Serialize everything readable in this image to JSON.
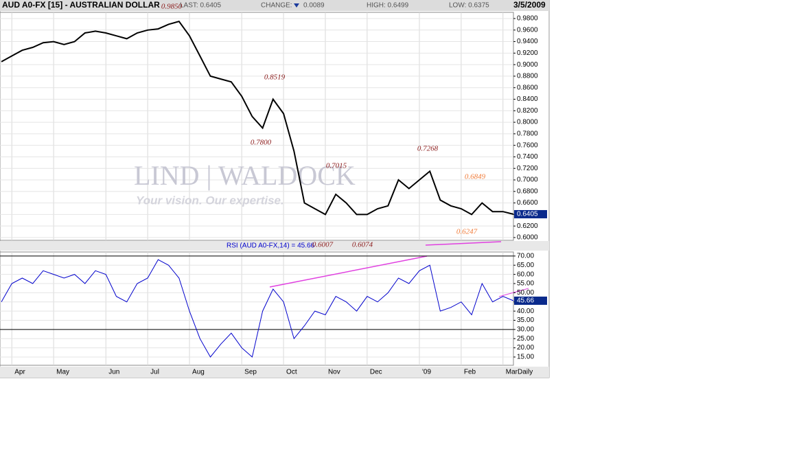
{
  "header": {
    "title": "AUD A0-FX [15] - AUSTRALIAN DOLLAR",
    "last": "LAST: 0.6405",
    "change_label": "CHANGE:",
    "change": "0.0089",
    "high": "HIGH: 0.6499",
    "low": "LOW: 0.6375",
    "date": "3/5/2009",
    "frequency": "Daily",
    "watermark": "LIND | WALDOCK",
    "tagline": "Your vision. Our expertise."
  },
  "chart_data": [
    {
      "type": "line",
      "color": "#000000",
      "categories": [
        null,
        "Apr",
        null,
        null,
        null,
        "May",
        null,
        null,
        null,
        null,
        "Jun",
        null,
        null,
        null,
        "Jul",
        null,
        null,
        null,
        "Aug",
        null,
        null,
        null,
        null,
        "Sep",
        null,
        null,
        null,
        "Oct",
        null,
        null,
        null,
        "Nov",
        null,
        null,
        null,
        "Dec",
        null,
        null,
        null,
        null,
        "'09",
        null,
        null,
        null,
        "Feb",
        null,
        null,
        null,
        "Mar",
        null
      ],
      "values": [
        0.905,
        0.915,
        0.925,
        0.93,
        0.938,
        0.94,
        0.935,
        0.94,
        0.955,
        0.958,
        0.955,
        0.95,
        0.945,
        0.955,
        0.96,
        0.962,
        0.97,
        0.975,
        0.95,
        0.915,
        0.88,
        0.875,
        0.87,
        0.845,
        0.81,
        0.79,
        0.84,
        0.815,
        0.75,
        0.66,
        0.65,
        0.64,
        0.675,
        0.66,
        0.64,
        0.64,
        0.65,
        0.655,
        0.7,
        0.685,
        0.7,
        0.715,
        0.665,
        0.655,
        0.65,
        0.64,
        0.66,
        0.645,
        0.645,
        0.6405
      ],
      "last_label": "0.6405",
      "ylim": [
        0.5952,
        0.9907
      ],
      "yticks": [
        {
          "value": 0.6,
          "label": "0.6000"
        },
        {
          "value": 0.62,
          "label": "0.6200"
        },
        {
          "value": 0.64,
          "label": "0.6400"
        },
        {
          "value": 0.66,
          "label": "0.6600"
        },
        {
          "value": 0.68,
          "label": "0.6800"
        },
        {
          "value": 0.7,
          "label": "0.7000"
        },
        {
          "value": 0.72,
          "label": "0.7200"
        },
        {
          "value": 0.74,
          "label": "0.7400"
        },
        {
          "value": 0.76,
          "label": "0.7600"
        },
        {
          "value": 0.78,
          "label": "0.7800"
        },
        {
          "value": 0.8,
          "label": "0.8000"
        },
        {
          "value": 0.82,
          "label": "0.8200"
        },
        {
          "value": 0.84,
          "label": "0.8400"
        },
        {
          "value": 0.86,
          "label": "0.8600"
        },
        {
          "value": 0.88,
          "label": "0.8800"
        },
        {
          "value": 0.9,
          "label": "0.9000"
        },
        {
          "value": 0.92,
          "label": "0.9200"
        },
        {
          "value": 0.94,
          "label": "0.9400"
        },
        {
          "value": 0.96,
          "label": "0.9600"
        },
        {
          "value": 0.98,
          "label": "0.9800"
        }
      ],
      "grid": true,
      "annotations": [
        {
          "text": "0.9850",
          "color": "#8b1a1a"
        },
        {
          "text": "0.8519",
          "color": "#8b1a1a"
        },
        {
          "text": "0.7800",
          "color": "#8b1a1a"
        },
        {
          "text": "0.7015",
          "color": "#8b1a1a"
        },
        {
          "text": "0.7268",
          "color": "#8b1a1a"
        },
        {
          "text": "0.6849",
          "color": "#f07c3a"
        },
        {
          "text": "0.6247",
          "color": "#f07c3a"
        },
        {
          "text": "0.6007",
          "color": "#8b1a1a"
        },
        {
          "text": "0.6074",
          "color": "#8b1a1a"
        }
      ]
    },
    {
      "type": "line",
      "title": "RSI (AUD A0-FX,14) = 45.66",
      "color": "#0000cc",
      "values": [
        45,
        55,
        58,
        55,
        62,
        60,
        58,
        60,
        55,
        62,
        60,
        48,
        45,
        55,
        58,
        68,
        65,
        58,
        40,
        25,
        15,
        22,
        28,
        20,
        15,
        40,
        52,
        45,
        25,
        32,
        40,
        38,
        48,
        45,
        40,
        48,
        45,
        50,
        58,
        55,
        62,
        65,
        40,
        42,
        45,
        38,
        55,
        45,
        48,
        45.66
      ],
      "last_label": "45.66",
      "ylim": [
        10.5,
        72.2
      ],
      "yticks": [
        {
          "value": 15,
          "label": "15.00"
        },
        {
          "value": 20,
          "label": "20.00"
        },
        {
          "value": 25,
          "label": "25.00"
        },
        {
          "value": 30,
          "label": "30.00"
        },
        {
          "value": 35,
          "label": "35.00"
        },
        {
          "value": 40,
          "label": "40.00"
        },
        {
          "value": 45,
          "label": "45.00"
        },
        {
          "value": 50,
          "label": "50.00"
        },
        {
          "value": 55,
          "label": "55.00"
        },
        {
          "value": 60,
          "label": "60.00"
        },
        {
          "value": 65,
          "label": "65.00"
        },
        {
          "value": 70,
          "label": "70.00"
        }
      ],
      "reference_lines": [
        30,
        70
      ]
    }
  ]
}
